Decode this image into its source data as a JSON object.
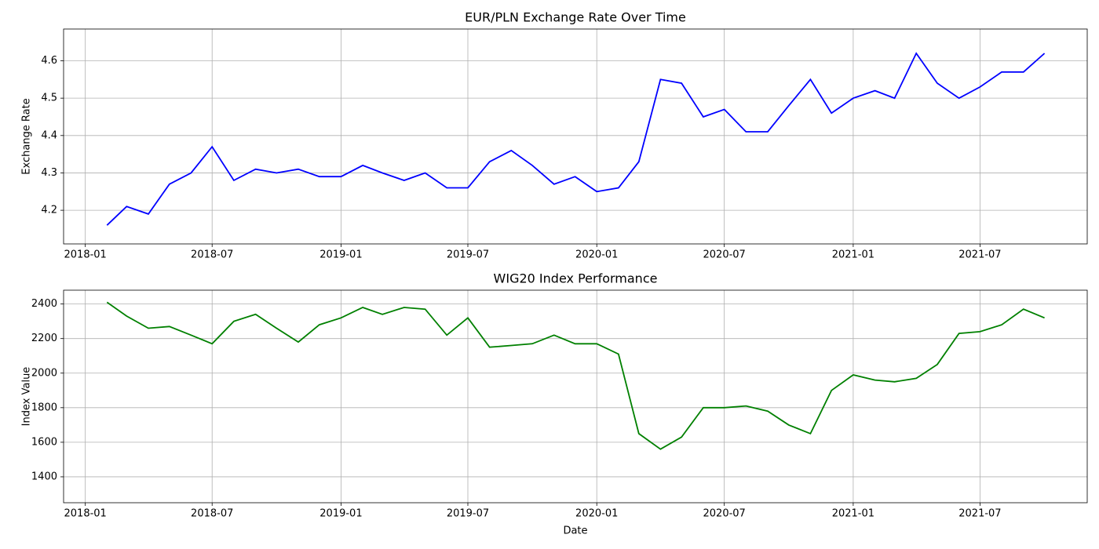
{
  "chart_data": [
    {
      "type": "line",
      "title": "EUR/PLN Exchange Rate Over Time",
      "y_label": "Exchange Rate",
      "color": "#0000ff",
      "grid": true,
      "x": [
        "2018-02",
        "2018-03",
        "2018-04",
        "2018-05",
        "2018-06",
        "2018-07",
        "2018-08",
        "2018-09",
        "2018-10",
        "2018-11",
        "2018-12",
        "2019-01",
        "2019-02",
        "2019-03",
        "2019-04",
        "2019-05",
        "2019-06",
        "2019-07",
        "2019-08",
        "2019-09",
        "2019-10",
        "2019-11",
        "2019-12",
        "2020-01",
        "2020-02",
        "2020-03",
        "2020-04",
        "2020-05",
        "2020-06",
        "2020-07",
        "2020-08",
        "2020-09",
        "2020-10",
        "2020-11",
        "2020-12",
        "2021-01",
        "2021-02",
        "2021-03",
        "2021-04",
        "2021-05",
        "2021-06",
        "2021-07",
        "2021-08",
        "2021-09",
        "2021-10"
      ],
      "values": [
        4.16,
        4.21,
        4.19,
        4.27,
        4.3,
        4.37,
        4.28,
        4.31,
        4.3,
        4.31,
        4.29,
        4.29,
        4.32,
        4.3,
        4.28,
        4.3,
        4.26,
        4.26,
        4.33,
        4.36,
        4.32,
        4.27,
        4.29,
        4.25,
        4.26,
        4.33,
        4.55,
        4.54,
        4.45,
        4.47,
        4.41,
        4.41,
        4.48,
        4.55,
        4.46,
        4.5,
        4.52,
        4.5,
        4.62,
        4.54,
        4.5,
        4.53,
        4.57,
        4.57,
        4.62
      ],
      "xlim": [
        "2017-12",
        "2021-12"
      ],
      "xticks": [
        "2018-01",
        "2018-07",
        "2019-01",
        "2019-07",
        "2020-01",
        "2020-07",
        "2021-01",
        "2021-07"
      ],
      "ylim": [
        4.11,
        4.685
      ],
      "yticks": [
        4.2,
        4.3,
        4.4,
        4.5,
        4.6
      ]
    },
    {
      "type": "line",
      "title": "WIG20 Index Performance",
      "y_label": "Index Value",
      "x_label": "Date",
      "color": "#008000",
      "grid": true,
      "x": [
        "2018-02",
        "2018-03",
        "2018-04",
        "2018-05",
        "2018-06",
        "2018-07",
        "2018-08",
        "2018-09",
        "2018-10",
        "2018-11",
        "2018-12",
        "2019-01",
        "2019-02",
        "2019-03",
        "2019-04",
        "2019-05",
        "2019-06",
        "2019-07",
        "2019-08",
        "2019-09",
        "2019-10",
        "2019-11",
        "2019-12",
        "2020-01",
        "2020-02",
        "2020-03",
        "2020-04",
        "2020-05",
        "2020-06",
        "2020-07",
        "2020-08",
        "2020-09",
        "2020-10",
        "2020-11",
        "2020-12",
        "2021-01",
        "2021-02",
        "2021-03",
        "2021-04",
        "2021-05",
        "2021-06",
        "2021-07",
        "2021-08",
        "2021-09",
        "2021-10"
      ],
      "values": [
        2410,
        2330,
        2260,
        2270,
        2220,
        2170,
        2300,
        2340,
        2260,
        2180,
        2280,
        2320,
        2380,
        2340,
        2380,
        2370,
        2220,
        2320,
        2150,
        2160,
        2170,
        2220,
        2170,
        2170,
        2110,
        1650,
        1560,
        1630,
        1800,
        1800,
        1810,
        1780,
        1700,
        1650,
        1900,
        1990,
        1960,
        1950,
        1970,
        2050,
        2230,
        2240,
        2280,
        2370,
        2320
      ],
      "xlim": [
        "2017-12",
        "2021-12"
      ],
      "xticks": [
        "2018-01",
        "2018-07",
        "2019-01",
        "2019-07",
        "2020-01",
        "2020-07",
        "2021-01",
        "2021-07"
      ],
      "ylim": [
        1250,
        2480
      ],
      "yticks": [
        1400,
        1600,
        1800,
        2000,
        2200,
        2400
      ]
    }
  ]
}
